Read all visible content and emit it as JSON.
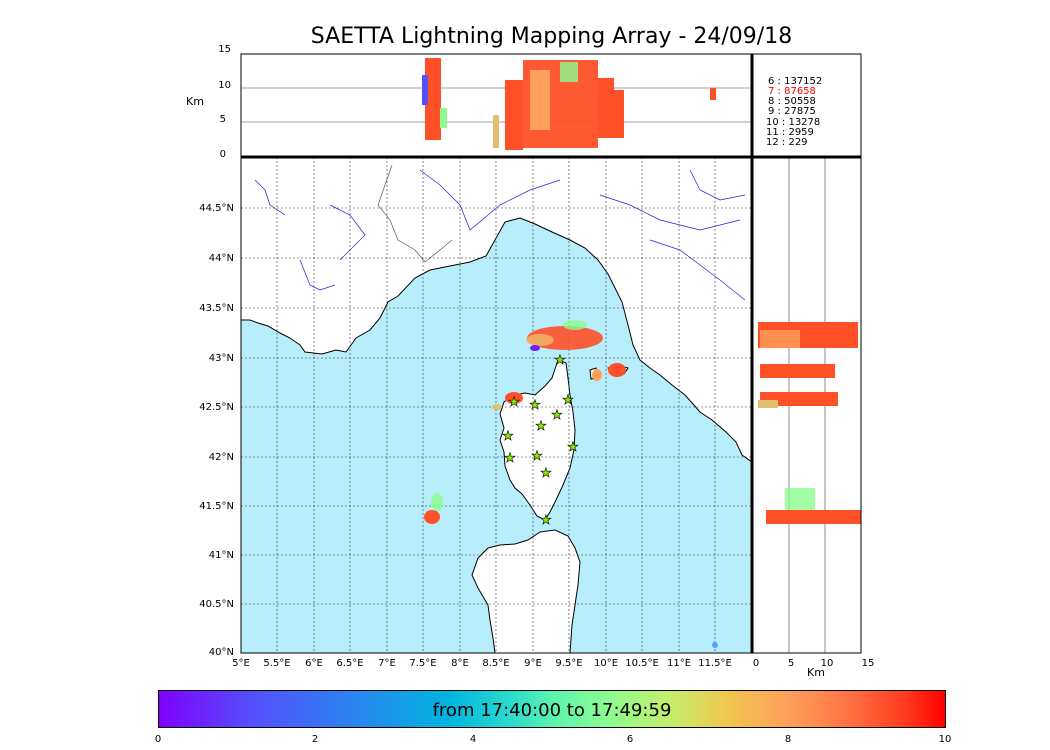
{
  "title": "SAETTA Lightning Mapping Array - 24/09/18",
  "colors": {
    "sea": "#b8eefc",
    "land": "#ffffff",
    "rivers": "#2020e0",
    "coast": "#000000",
    "stations": "#88ee00"
  },
  "counts": [
    {
      "label": "6  :   137152",
      "color": "#000000"
    },
    {
      "label": "7  :    87658",
      "color": "#ff0000"
    },
    {
      "label": "8  :    50558",
      "color": "#000000"
    },
    {
      "label": "9  :    27875",
      "color": "#000000"
    },
    {
      "label": "10  :    13278",
      "color": "#000000"
    },
    {
      "label": "11  :     2959",
      "color": "#000000"
    },
    {
      "label": "12  :      229",
      "color": "#000000"
    }
  ],
  "map": {
    "lon_ticks": [
      "5°E",
      "5.5°E",
      "6°E",
      "6.5°E",
      "7°E",
      "7.5°E",
      "8°E",
      "8.5°E",
      "9°E",
      "9.5°E",
      "10°E",
      "10.5°E",
      "11°E",
      "11.5°E"
    ],
    "lat_ticks": [
      "44.5°N",
      "44°N",
      "43.5°N",
      "43°N",
      "42.5°N",
      "42°N",
      "41.5°N",
      "41°N",
      "40.5°N",
      "40°N"
    ]
  },
  "top_panel": {
    "ylabel": "Km",
    "yticks": [
      "15",
      "10",
      "5",
      "0"
    ]
  },
  "right_panel": {
    "xlabel": "Km",
    "xticks": [
      "0",
      "5",
      "10",
      "15"
    ]
  },
  "colorbar": {
    "label": "from 17:40:00 to 17:49:59",
    "ticks": [
      "0",
      "2",
      "4",
      "6",
      "8",
      "10"
    ]
  },
  "chart_data": {
    "type": "scatter",
    "title": "SAETTA Lightning Mapping Array - 24/09/18",
    "xlim": [
      5,
      12.5
    ],
    "ylim": [
      40,
      45
    ],
    "alt_range_km": [
      0,
      15
    ],
    "time_range_min": [
      0,
      10
    ],
    "lightning_clusters": [
      {
        "lon": 9.3,
        "lat": 43.2,
        "alt_km": [
          2,
          14
        ],
        "time_min": [
          6,
          10
        ]
      },
      {
        "lon": 10.15,
        "lat": 42.9,
        "alt_km": [
          2,
          12
        ],
        "time_min": [
          8,
          10
        ]
      },
      {
        "lon": 8.7,
        "lat": 42.6,
        "alt_km": [
          2,
          13
        ],
        "time_min": [
          8,
          10
        ]
      },
      {
        "lon": 7.6,
        "lat": 41.4,
        "alt_km": [
          2,
          14
        ],
        "time_min": [
          5,
          10
        ]
      }
    ],
    "stations": [
      [
        9.33,
        43.0
      ],
      [
        8.7,
        42.58
      ],
      [
        9.03,
        42.55
      ],
      [
        9.45,
        42.6
      ],
      [
        9.3,
        42.44
      ],
      [
        9.1,
        42.34
      ],
      [
        8.72,
        42.24
      ],
      [
        9.53,
        42.12
      ],
      [
        8.7,
        42.02
      ],
      [
        9.05,
        42.04
      ],
      [
        9.17,
        41.86
      ],
      [
        9.17,
        41.38
      ]
    ]
  }
}
